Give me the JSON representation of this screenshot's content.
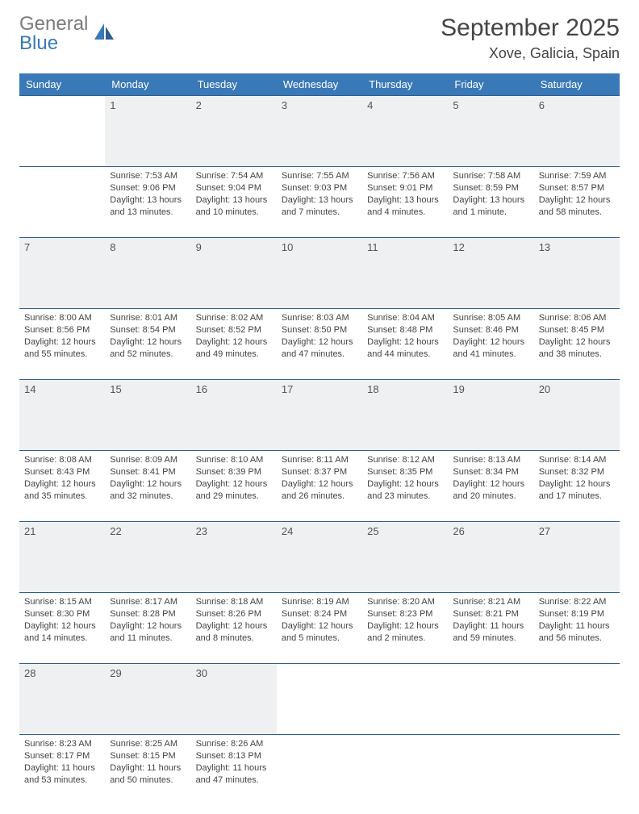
{
  "brand": {
    "name_grey": "General",
    "name_blue": "Blue"
  },
  "title": "September 2025",
  "location": "Xove, Galicia, Spain",
  "colors": {
    "header_bg": "#3a79b7",
    "header_text": "#ffffff",
    "daynum_bg": "#eef0f1",
    "row_border": "#2f5d8c",
    "body_text": "#444444"
  },
  "weekdays": [
    "Sunday",
    "Monday",
    "Tuesday",
    "Wednesday",
    "Thursday",
    "Friday",
    "Saturday"
  ],
  "weeks": [
    {
      "nums": [
        "",
        "1",
        "2",
        "3",
        "4",
        "5",
        "6"
      ],
      "cells": [
        null,
        {
          "sr": "Sunrise: 7:53 AM",
          "ss": "Sunset: 9:06 PM",
          "dl1": "Daylight: 13 hours",
          "dl2": "and 13 minutes."
        },
        {
          "sr": "Sunrise: 7:54 AM",
          "ss": "Sunset: 9:04 PM",
          "dl1": "Daylight: 13 hours",
          "dl2": "and 10 minutes."
        },
        {
          "sr": "Sunrise: 7:55 AM",
          "ss": "Sunset: 9:03 PM",
          "dl1": "Daylight: 13 hours",
          "dl2": "and 7 minutes."
        },
        {
          "sr": "Sunrise: 7:56 AM",
          "ss": "Sunset: 9:01 PM",
          "dl1": "Daylight: 13 hours",
          "dl2": "and 4 minutes."
        },
        {
          "sr": "Sunrise: 7:58 AM",
          "ss": "Sunset: 8:59 PM",
          "dl1": "Daylight: 13 hours",
          "dl2": "and 1 minute."
        },
        {
          "sr": "Sunrise: 7:59 AM",
          "ss": "Sunset: 8:57 PM",
          "dl1": "Daylight: 12 hours",
          "dl2": "and 58 minutes."
        }
      ]
    },
    {
      "nums": [
        "7",
        "8",
        "9",
        "10",
        "11",
        "12",
        "13"
      ],
      "cells": [
        {
          "sr": "Sunrise: 8:00 AM",
          "ss": "Sunset: 8:56 PM",
          "dl1": "Daylight: 12 hours",
          "dl2": "and 55 minutes."
        },
        {
          "sr": "Sunrise: 8:01 AM",
          "ss": "Sunset: 8:54 PM",
          "dl1": "Daylight: 12 hours",
          "dl2": "and 52 minutes."
        },
        {
          "sr": "Sunrise: 8:02 AM",
          "ss": "Sunset: 8:52 PM",
          "dl1": "Daylight: 12 hours",
          "dl2": "and 49 minutes."
        },
        {
          "sr": "Sunrise: 8:03 AM",
          "ss": "Sunset: 8:50 PM",
          "dl1": "Daylight: 12 hours",
          "dl2": "and 47 minutes."
        },
        {
          "sr": "Sunrise: 8:04 AM",
          "ss": "Sunset: 8:48 PM",
          "dl1": "Daylight: 12 hours",
          "dl2": "and 44 minutes."
        },
        {
          "sr": "Sunrise: 8:05 AM",
          "ss": "Sunset: 8:46 PM",
          "dl1": "Daylight: 12 hours",
          "dl2": "and 41 minutes."
        },
        {
          "sr": "Sunrise: 8:06 AM",
          "ss": "Sunset: 8:45 PM",
          "dl1": "Daylight: 12 hours",
          "dl2": "and 38 minutes."
        }
      ]
    },
    {
      "nums": [
        "14",
        "15",
        "16",
        "17",
        "18",
        "19",
        "20"
      ],
      "cells": [
        {
          "sr": "Sunrise: 8:08 AM",
          "ss": "Sunset: 8:43 PM",
          "dl1": "Daylight: 12 hours",
          "dl2": "and 35 minutes."
        },
        {
          "sr": "Sunrise: 8:09 AM",
          "ss": "Sunset: 8:41 PM",
          "dl1": "Daylight: 12 hours",
          "dl2": "and 32 minutes."
        },
        {
          "sr": "Sunrise: 8:10 AM",
          "ss": "Sunset: 8:39 PM",
          "dl1": "Daylight: 12 hours",
          "dl2": "and 29 minutes."
        },
        {
          "sr": "Sunrise: 8:11 AM",
          "ss": "Sunset: 8:37 PM",
          "dl1": "Daylight: 12 hours",
          "dl2": "and 26 minutes."
        },
        {
          "sr": "Sunrise: 8:12 AM",
          "ss": "Sunset: 8:35 PM",
          "dl1": "Daylight: 12 hours",
          "dl2": "and 23 minutes."
        },
        {
          "sr": "Sunrise: 8:13 AM",
          "ss": "Sunset: 8:34 PM",
          "dl1": "Daylight: 12 hours",
          "dl2": "and 20 minutes."
        },
        {
          "sr": "Sunrise: 8:14 AM",
          "ss": "Sunset: 8:32 PM",
          "dl1": "Daylight: 12 hours",
          "dl2": "and 17 minutes."
        }
      ]
    },
    {
      "nums": [
        "21",
        "22",
        "23",
        "24",
        "25",
        "26",
        "27"
      ],
      "cells": [
        {
          "sr": "Sunrise: 8:15 AM",
          "ss": "Sunset: 8:30 PM",
          "dl1": "Daylight: 12 hours",
          "dl2": "and 14 minutes."
        },
        {
          "sr": "Sunrise: 8:17 AM",
          "ss": "Sunset: 8:28 PM",
          "dl1": "Daylight: 12 hours",
          "dl2": "and 11 minutes."
        },
        {
          "sr": "Sunrise: 8:18 AM",
          "ss": "Sunset: 8:26 PM",
          "dl1": "Daylight: 12 hours",
          "dl2": "and 8 minutes."
        },
        {
          "sr": "Sunrise: 8:19 AM",
          "ss": "Sunset: 8:24 PM",
          "dl1": "Daylight: 12 hours",
          "dl2": "and 5 minutes."
        },
        {
          "sr": "Sunrise: 8:20 AM",
          "ss": "Sunset: 8:23 PM",
          "dl1": "Daylight: 12 hours",
          "dl2": "and 2 minutes."
        },
        {
          "sr": "Sunrise: 8:21 AM",
          "ss": "Sunset: 8:21 PM",
          "dl1": "Daylight: 11 hours",
          "dl2": "and 59 minutes."
        },
        {
          "sr": "Sunrise: 8:22 AM",
          "ss": "Sunset: 8:19 PM",
          "dl1": "Daylight: 11 hours",
          "dl2": "and 56 minutes."
        }
      ]
    },
    {
      "nums": [
        "28",
        "29",
        "30",
        "",
        "",
        "",
        ""
      ],
      "cells": [
        {
          "sr": "Sunrise: 8:23 AM",
          "ss": "Sunset: 8:17 PM",
          "dl1": "Daylight: 11 hours",
          "dl2": "and 53 minutes."
        },
        {
          "sr": "Sunrise: 8:25 AM",
          "ss": "Sunset: 8:15 PM",
          "dl1": "Daylight: 11 hours",
          "dl2": "and 50 minutes."
        },
        {
          "sr": "Sunrise: 8:26 AM",
          "ss": "Sunset: 8:13 PM",
          "dl1": "Daylight: 11 hours",
          "dl2": "and 47 minutes."
        },
        null,
        null,
        null,
        null
      ]
    }
  ]
}
